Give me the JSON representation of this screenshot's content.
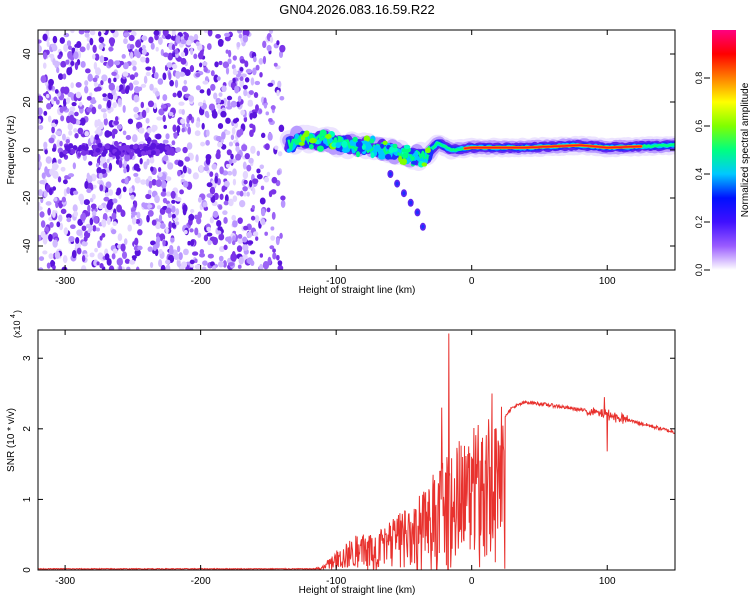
{
  "figure": {
    "title": "GN04.2026.083.16.59.R22"
  },
  "chart_data": [
    {
      "type": "heatmap",
      "title": "GN04.2026.083.16.59.R22",
      "xlabel": "Height of straight line (km)",
      "ylabel": "Frequency (Hz)",
      "xlim": [
        -320,
        150
      ],
      "ylim": [
        -50,
        50
      ],
      "xticks": [
        -300,
        -200,
        -100,
        0,
        100
      ],
      "yticks": [
        -40,
        -20,
        0,
        20,
        40
      ],
      "colorbar": {
        "label": "Normalized spectral amplitude",
        "range": [
          0,
          1
        ],
        "ticks": [
          "0.0",
          "0.2",
          "0.4",
          "0.6",
          "0.8"
        ],
        "colors": [
          "#ffffff",
          "#9a5cff",
          "#4010ff",
          "#0010ff",
          "#00c8ff",
          "#00ff80",
          "#80ff00",
          "#ffff00",
          "#ff8000",
          "#ff0000",
          "#ff0080"
        ]
      },
      "features": {
        "noise_region_x": [
          -320,
          -135
        ],
        "band_center_hz": [
          {
            "x": -130,
            "y": 5
          },
          {
            "x": -110,
            "y": 4
          },
          {
            "x": -90,
            "y": 2
          },
          {
            "x": -70,
            "y": 1
          },
          {
            "x": -50,
            "y": -2
          },
          {
            "x": -35,
            "y": -3
          },
          {
            "x": -25,
            "y": 3
          },
          {
            "x": -15,
            "y": 0
          },
          {
            "x": 0,
            "y": 1
          },
          {
            "x": 40,
            "y": 1
          },
          {
            "x": 80,
            "y": 2
          },
          {
            "x": 100,
            "y": 1
          },
          {
            "x": 150,
            "y": 2
          }
        ],
        "tail_points": [
          {
            "x": -60,
            "y": -10
          },
          {
            "x": -55,
            "y": -14
          },
          {
            "x": -50,
            "y": -18
          },
          {
            "x": -45,
            "y": -22
          },
          {
            "x": -40,
            "y": -26
          },
          {
            "x": -36,
            "y": -32
          }
        ]
      }
    },
    {
      "type": "line",
      "xlabel": "Height of straight line (km)",
      "ylabel": "SNR (10 * v/v)",
      "yscale_label": "(x10",
      "yscale_exp": "4",
      "xlim": [
        -320,
        150
      ],
      "ylim": [
        0,
        3.4
      ],
      "xticks": [
        -300,
        -200,
        -100,
        0,
        100
      ],
      "yticks": [
        0,
        1,
        2,
        3
      ],
      "series": [
        {
          "name": "SNR",
          "color": "#e8322e",
          "envelope": [
            {
              "x": -320,
              "y": 0.01
            },
            {
              "x": -120,
              "y": 0.01
            },
            {
              "x": -110,
              "y": 0.05
            },
            {
              "x": -100,
              "y": 0.25
            },
            {
              "x": -90,
              "y": 0.4
            },
            {
              "x": -80,
              "y": 0.5
            },
            {
              "x": -70,
              "y": 0.55
            },
            {
              "x": -60,
              "y": 0.65
            },
            {
              "x": -50,
              "y": 0.8
            },
            {
              "x": -40,
              "y": 1.0
            },
            {
              "x": -30,
              "y": 1.2
            },
            {
              "x": -20,
              "y": 1.5
            },
            {
              "x": -10,
              "y": 1.7
            },
            {
              "x": 0,
              "y": 1.85
            },
            {
              "x": 10,
              "y": 1.95
            },
            {
              "x": 20,
              "y": 2.1
            },
            {
              "x": 30,
              "y": 2.3
            },
            {
              "x": 40,
              "y": 2.38
            },
            {
              "x": 60,
              "y": 2.33
            },
            {
              "x": 80,
              "y": 2.27
            },
            {
              "x": 100,
              "y": 2.2
            },
            {
              "x": 120,
              "y": 2.1
            },
            {
              "x": 150,
              "y": 1.95
            }
          ],
          "spikes": [
            {
              "x": -17,
              "y": 3.35
            },
            {
              "x": -22,
              "y": 2.3
            },
            {
              "x": 15,
              "y": 2.5
            },
            {
              "x": 100,
              "y": 1.68
            },
            {
              "x": 98,
              "y": 2.45
            }
          ]
        }
      ]
    }
  ]
}
